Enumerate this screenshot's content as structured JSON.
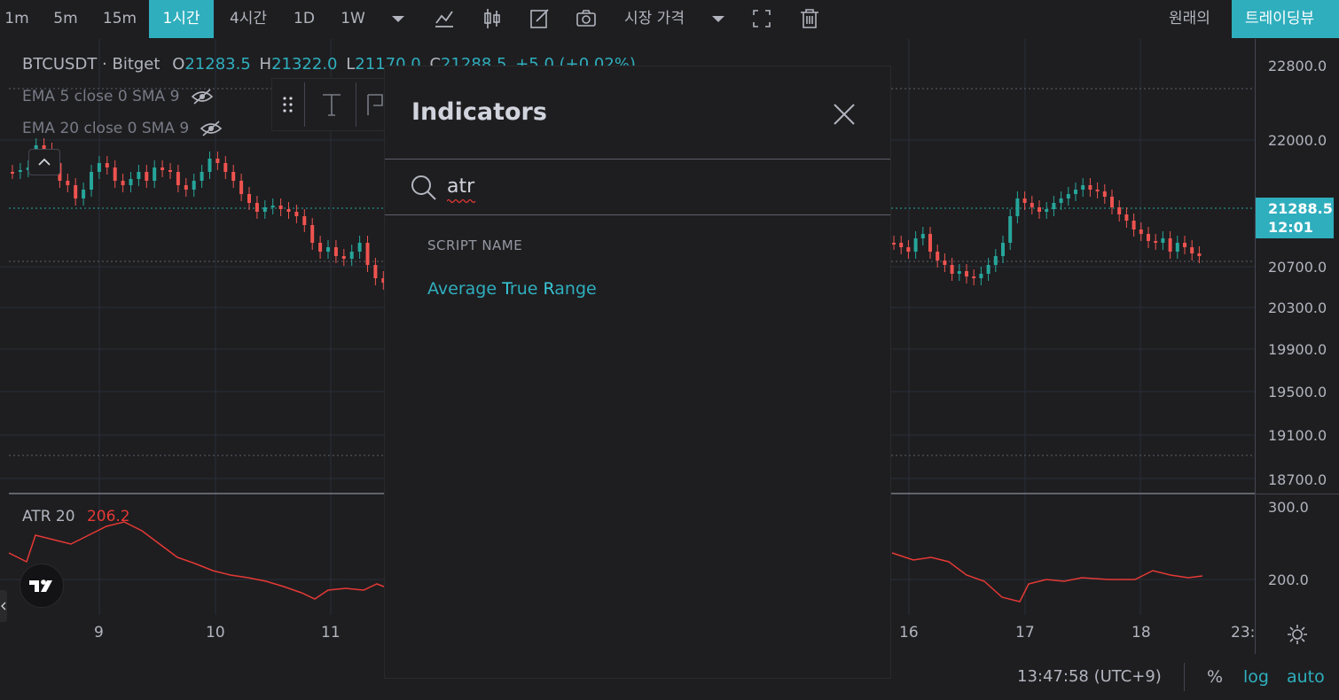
{
  "toolbar": {
    "intervals": [
      "1m",
      "5m",
      "15m",
      "1시간",
      "4시간",
      "1D",
      "1W"
    ],
    "active_interval": "1시간",
    "price_type_label": "시장 가격",
    "original_label": "원래의",
    "tradingview_label": "트레이딩뷰",
    "icons": [
      "chevron-down-icon",
      "indicators-icon",
      "candles-icon",
      "pencil-icon",
      "camera-icon",
      "chevron-down-icon",
      "fullscreen-icon",
      "trash-icon"
    ]
  },
  "legend": {
    "symbol": "BTCUSDT · Bitget",
    "ohlc": {
      "open_prefix": "O",
      "open": "21283.5",
      "high_prefix": "H",
      "high": "21322.0",
      "low_prefix": "L",
      "low": "21170.0",
      "close_prefix": "C",
      "close": "21288.5",
      "change": "+5.0 (+0.02%)"
    },
    "ema5": "EMA 5 close 0 SMA 9",
    "ema20": "EMA 20 close 0 SMA 9",
    "atr_label": "ATR 20",
    "atr_value": "206.2"
  },
  "price_axis": {
    "labels": [
      "22800.0",
      "22000.0",
      "21288.5",
      "20700.0",
      "20300.0",
      "19900.0",
      "19500.0",
      "19100.0",
      "18700.0"
    ],
    "last_price": "21288.5",
    "countdown": "12:01",
    "atr_labels": [
      "300.0",
      "200.0"
    ]
  },
  "time_axis": {
    "labels": [
      "9",
      "10",
      "11",
      "16",
      "17",
      "18",
      "23:"
    ]
  },
  "bottom_bar": {
    "clock": "13:47:58 (UTC+9)",
    "percent_label": "%",
    "log_label": "log",
    "auto_label": "auto"
  },
  "modal": {
    "title": "Indicators",
    "search_value": "atr",
    "section_label": "SCRIPT NAME",
    "results": [
      {
        "name_parts": [
          "Average ",
          "T",
          "rue ",
          "R",
          "ange"
        ]
      }
    ]
  },
  "colors": {
    "accent": "#2faebd",
    "up": "#26a69a",
    "down": "#ef5350",
    "background": "#1e1e21",
    "atr_line": "#e53935"
  }
}
